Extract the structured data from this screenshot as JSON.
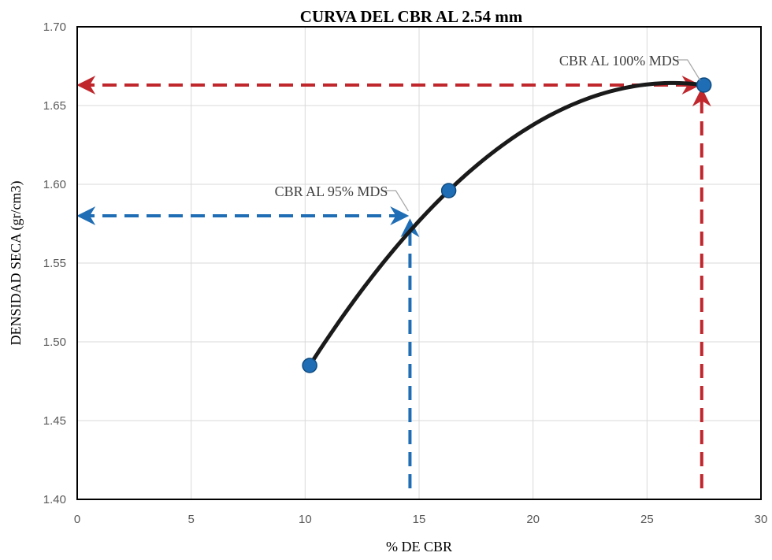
{
  "chart_data": {
    "type": "scatter",
    "title": "CURVA DEL CBR AL 2.54 mm",
    "xlabel": "% DE CBR",
    "ylabel": "DENSIDAD SECA (gr/cm3)",
    "xlim": [
      0,
      30
    ],
    "ylim": [
      1.4,
      1.7
    ],
    "x_ticks": [
      0,
      5,
      10,
      15,
      20,
      25,
      30
    ],
    "x_tick_labels": [
      "0",
      "5",
      "10",
      "15",
      "20",
      "25",
      "30"
    ],
    "y_ticks": [
      1.4,
      1.45,
      1.5,
      1.55,
      1.6,
      1.65,
      1.7
    ],
    "y_tick_labels": [
      "1.40",
      "1.45",
      "1.50",
      "1.55",
      "1.60",
      "1.65",
      "1.70"
    ],
    "grid": true,
    "series": [
      {
        "points": [
          {
            "x": 10.2,
            "y": 1.485
          },
          {
            "x": 16.3,
            "y": 1.596
          },
          {
            "x": 27.5,
            "y": 1.663
          }
        ],
        "color": "#1f6eb5",
        "trendline_color": "#1a1a1a"
      }
    ],
    "reference_lines": [
      {
        "label": "CBR AL 95% MDS",
        "x": 14.6,
        "y": 1.58,
        "color": "#1f6eb5"
      },
      {
        "label": "CBR AL 100% MDS",
        "x": 27.4,
        "y": 1.663,
        "color": "#c0272d"
      }
    ]
  }
}
